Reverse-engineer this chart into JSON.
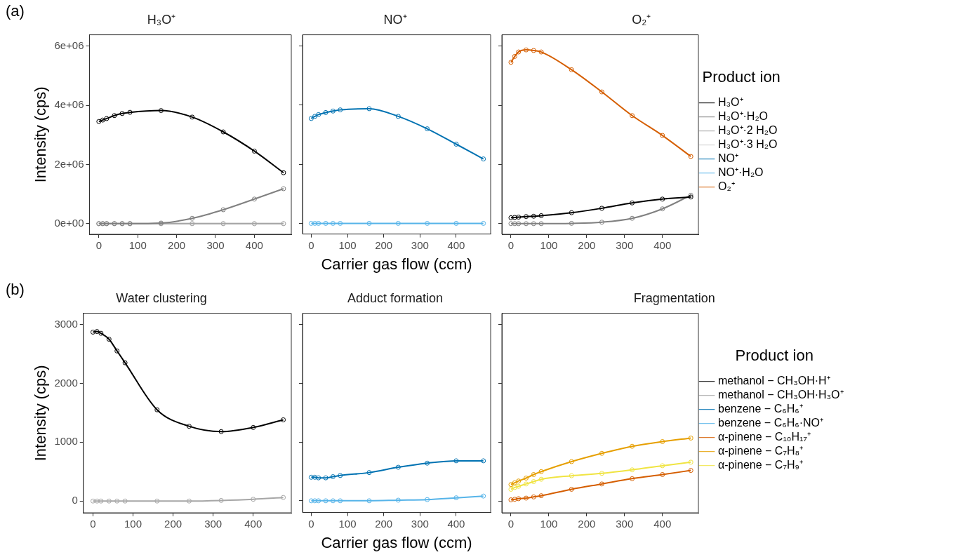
{
  "chart_data": [
    {
      "type": "line",
      "title": "H₃O⁺",
      "ylabel": "Intensity (cps)",
      "annotations": [
        "(a)"
      ],
      "x": [
        0,
        10,
        20,
        40,
        60,
        80,
        160,
        240,
        320,
        400,
        475
      ],
      "xlim": [
        -24,
        495
      ],
      "xticks": [
        0,
        100,
        200,
        300,
        400
      ],
      "ylim": [
        -360000,
        6380000
      ],
      "yticks": [
        {
          "value": 0,
          "label": "0e+00"
        },
        {
          "value": 2000000,
          "label": "2e+06"
        },
        {
          "value": 4000000,
          "label": "4e+06"
        },
        {
          "value": 6000000,
          "label": "6e+06"
        }
      ],
      "marker": "circle",
      "line_style": "solid",
      "grid": false,
      "series": [
        {
          "color": "#000000",
          "values": [
            3450000,
            3500000,
            3550000,
            3650000,
            3720000,
            3760000,
            3820000,
            3600000,
            3100000,
            2450000,
            1720000
          ]
        },
        {
          "color": "#808080",
          "values": [
            0,
            0,
            0,
            0,
            0,
            0,
            20000,
            180000,
            470000,
            830000,
            1180000
          ]
        },
        {
          "color": "#a6a6a6",
          "values": [
            0,
            0,
            0,
            0,
            0,
            0,
            0,
            0,
            0,
            0,
            0
          ]
        },
        {
          "color": "#d0d0d0",
          "values": [
            0,
            0,
            0,
            0,
            0,
            0,
            0,
            0,
            0,
            0,
            0
          ]
        }
      ]
    },
    {
      "type": "line",
      "title": "NO⁺",
      "xlabel": "Carrier gas flow (ccm)",
      "tick_labels": "x",
      "x": [
        0,
        10,
        20,
        40,
        60,
        80,
        160,
        240,
        320,
        400,
        475
      ],
      "xlim": [
        -24,
        495
      ],
      "xticks": [
        0,
        100,
        200,
        300,
        400
      ],
      "ylim": [
        -360000,
        6380000
      ],
      "yticks": [
        0,
        2000000,
        4000000,
        6000000
      ],
      "marker": "circle",
      "line_style": "solid",
      "grid": false,
      "series": [
        {
          "color": "#0072b2",
          "values": [
            3550000,
            3620000,
            3680000,
            3750000,
            3800000,
            3840000,
            3880000,
            3620000,
            3200000,
            2680000,
            2180000
          ]
        },
        {
          "color": "#56b4e9",
          "values": [
            0,
            0,
            0,
            0,
            0,
            0,
            0,
            0,
            0,
            0,
            0
          ]
        }
      ]
    },
    {
      "type": "line",
      "title": "O₂⁺",
      "tick_labels": "x",
      "legend": "right",
      "legend_title": "Product ion",
      "x": [
        0,
        10,
        20,
        40,
        60,
        80,
        160,
        240,
        320,
        400,
        475
      ],
      "xlim": [
        -24,
        495
      ],
      "xticks": [
        0,
        100,
        200,
        300,
        400
      ],
      "ylim": [
        -360000,
        6380000
      ],
      "yticks": [
        0,
        2000000,
        4000000,
        6000000
      ],
      "marker": "circle",
      "line_style": "solid",
      "grid": false,
      "series": [
        {
          "name": "H₃O⁺",
          "color": "#000000",
          "values": [
            200000,
            210000,
            220000,
            240000,
            250000,
            270000,
            370000,
            520000,
            700000,
            830000,
            900000
          ]
        },
        {
          "name": "H₃O⁺·H₂O",
          "color": "#808080",
          "values": [
            0,
            0,
            0,
            0,
            0,
            0,
            10000,
            50000,
            180000,
            500000,
            960000
          ]
        },
        {
          "name": "H₃O⁺·2 H₂O",
          "color": "#a6a6a6",
          "values": [
            null,
            null,
            null,
            null,
            null,
            null,
            null,
            null,
            null,
            null,
            null
          ]
        },
        {
          "name": "H₃O⁺·3 H₂O",
          "color": "#d0d0d0",
          "values": [
            null,
            null,
            null,
            null,
            null,
            null,
            null,
            null,
            null,
            null,
            null
          ]
        },
        {
          "name": "NO⁺",
          "color": "#0072b2",
          "values": [
            null,
            null,
            null,
            null,
            null,
            null,
            null,
            null,
            null,
            null,
            null
          ]
        },
        {
          "name": "NO⁺·H₂O",
          "color": "#56b4e9",
          "values": [
            null,
            null,
            null,
            null,
            null,
            null,
            null,
            null,
            null,
            null,
            null
          ]
        },
        {
          "name": "O₂⁺",
          "color": "#d55e00",
          "values": [
            5450000,
            5650000,
            5800000,
            5870000,
            5850000,
            5800000,
            5200000,
            4450000,
            3650000,
            2980000,
            2270000
          ]
        }
      ]
    },
    {
      "type": "line",
      "title": "Water clustering",
      "ylabel": "Intensity (cps)",
      "annotations": [
        "(b)"
      ],
      "x": [
        0,
        10,
        20,
        40,
        60,
        80,
        160,
        240,
        320,
        400,
        475
      ],
      "xlim": [
        -24,
        495
      ],
      "xticks": [
        0,
        100,
        200,
        300,
        400
      ],
      "ylim": [
        -200,
        3190
      ],
      "yticks": [
        0,
        1000,
        2000,
        3000
      ],
      "marker": "circle",
      "line_style": "solid",
      "grid": false,
      "series": [
        {
          "color": "#000000",
          "values": [
            2870,
            2880,
            2850,
            2750,
            2550,
            2350,
            1550,
            1270,
            1180,
            1250,
            1380
          ]
        },
        {
          "color": "#a6a6a6",
          "values": [
            0,
            0,
            0,
            0,
            0,
            0,
            0,
            0,
            10,
            30,
            60
          ]
        }
      ]
    },
    {
      "type": "line",
      "title": "Adduct formation",
      "xlabel": "Carrier gas flow (ccm)",
      "tick_labels": "x",
      "x": [
        0,
        10,
        20,
        40,
        60,
        80,
        160,
        240,
        320,
        400,
        475
      ],
      "xlim": [
        -24,
        495
      ],
      "xticks": [
        0,
        100,
        200,
        300,
        400
      ],
      "ylim": [
        -200,
        3190
      ],
      "yticks": [
        0,
        1000,
        2000,
        3000
      ],
      "marker": "circle",
      "line_style": "solid",
      "grid": false,
      "series": [
        {
          "color": "#0072b2",
          "values": [
            400,
            400,
            390,
            390,
            410,
            430,
            480,
            570,
            640,
            680,
            680
          ]
        },
        {
          "color": "#56b4e9",
          "values": [
            0,
            0,
            0,
            0,
            0,
            0,
            0,
            10,
            20,
            50,
            80
          ]
        }
      ]
    },
    {
      "type": "line",
      "title": "Fragmentation",
      "tick_labels": "x",
      "legend": "right",
      "legend_title": "Product ion",
      "x": [
        0,
        10,
        20,
        40,
        60,
        80,
        160,
        240,
        320,
        400,
        475
      ],
      "xlim": [
        -24,
        495
      ],
      "xticks": [
        0,
        100,
        200,
        300,
        400
      ],
      "ylim": [
        -200,
        3190
      ],
      "yticks": [
        0,
        1000,
        2000,
        3000
      ],
      "marker": "circle",
      "line_style": "solid",
      "grid": false,
      "series": [
        {
          "name": "methanol − CH₃OH·H⁺",
          "color": "#000000",
          "values": [
            null,
            null,
            null,
            null,
            null,
            null,
            null,
            null,
            null,
            null,
            null
          ]
        },
        {
          "name": "methanol − CH₃OH·H₃O⁺",
          "color": "#a6a6a6",
          "values": [
            null,
            null,
            null,
            null,
            null,
            null,
            null,
            null,
            null,
            null,
            null
          ]
        },
        {
          "name": "benzene − C₆H₆⁺",
          "color": "#0072b2",
          "values": [
            null,
            null,
            null,
            null,
            null,
            null,
            null,
            null,
            null,
            null,
            null
          ]
        },
        {
          "name": "benzene − C₆H₆·NO⁺",
          "color": "#56b4e9",
          "values": [
            null,
            null,
            null,
            null,
            null,
            null,
            null,
            null,
            null,
            null,
            null
          ]
        },
        {
          "name": "α-pinene − C₁₀H₁₇⁺",
          "color": "#d55e00",
          "values": [
            20,
            30,
            40,
            50,
            70,
            90,
            200,
            290,
            380,
            450,
            520
          ]
        },
        {
          "name": "α-pinene − C₇H₈⁺",
          "color": "#e69f00",
          "values": [
            280,
            310,
            340,
            390,
            450,
            500,
            670,
            810,
            930,
            1010,
            1070
          ]
        },
        {
          "name": "α-pinene − C₇H₉⁺",
          "color": "#f0e442",
          "values": [
            200,
            230,
            250,
            290,
            330,
            370,
            430,
            470,
            530,
            600,
            660
          ]
        }
      ]
    }
  ]
}
